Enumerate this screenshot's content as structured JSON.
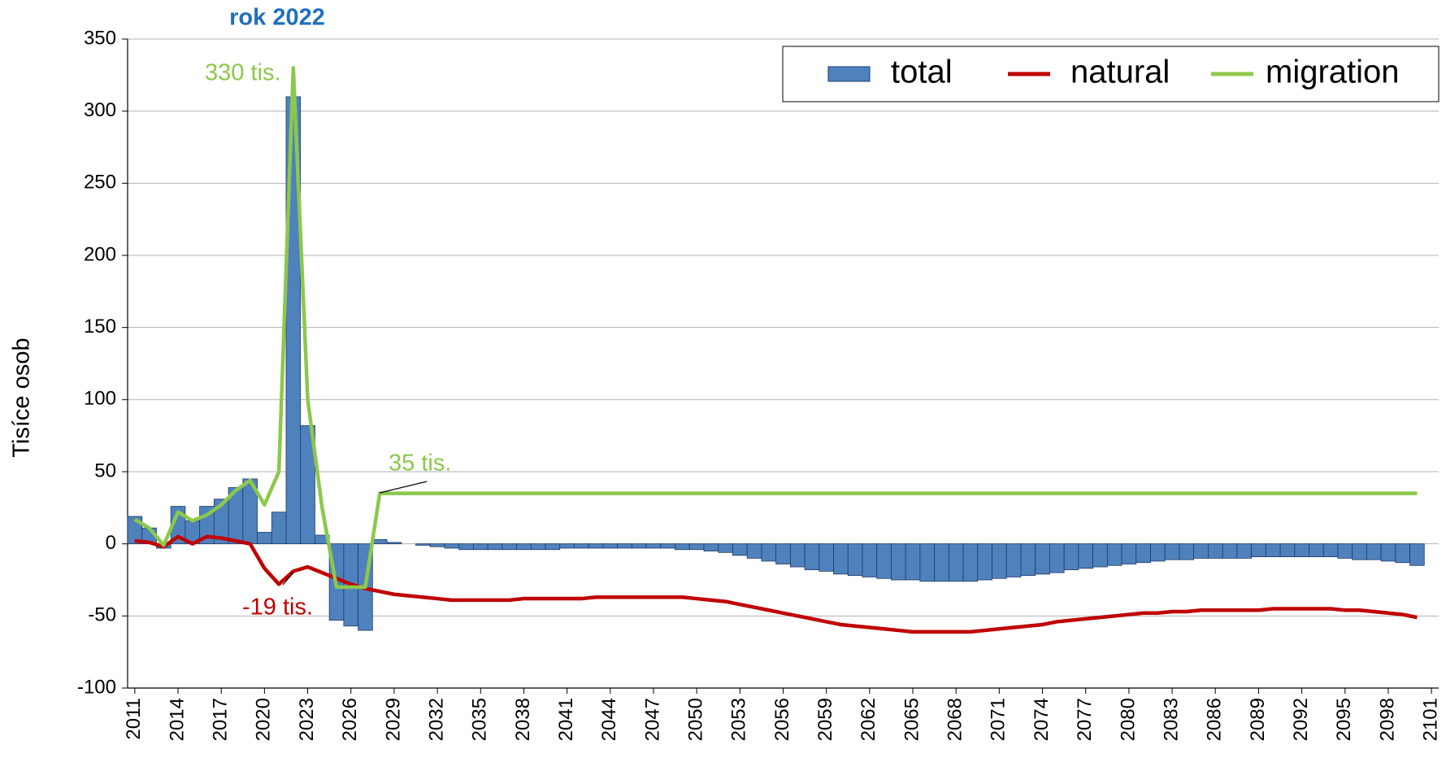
{
  "chart_data": {
    "type": "bar",
    "y_label": "Tisíce osob",
    "annotations": [
      "rok 2022",
      "330 tis.",
      "35 tis.",
      "-19 tis."
    ],
    "x": [
      2011,
      2012,
      2013,
      2014,
      2015,
      2016,
      2017,
      2018,
      2019,
      2020,
      2021,
      2022,
      2023,
      2024,
      2025,
      2026,
      2027,
      2028,
      2029,
      2030,
      2031,
      2032,
      2033,
      2034,
      2035,
      2036,
      2037,
      2038,
      2039,
      2040,
      2041,
      2042,
      2043,
      2044,
      2045,
      2046,
      2047,
      2048,
      2049,
      2050,
      2051,
      2052,
      2053,
      2054,
      2055,
      2056,
      2057,
      2058,
      2059,
      2060,
      2061,
      2062,
      2063,
      2064,
      2065,
      2066,
      2067,
      2068,
      2069,
      2070,
      2071,
      2072,
      2073,
      2074,
      2075,
      2076,
      2077,
      2078,
      2079,
      2080,
      2081,
      2082,
      2083,
      2084,
      2085,
      2086,
      2087,
      2088,
      2089,
      2090,
      2091,
      2092,
      2093,
      2094,
      2095,
      2096,
      2097,
      2098,
      2099,
      2100
    ],
    "series": [
      {
        "name": "total",
        "type": "bar",
        "color": "#4f81bd",
        "values": [
          19,
          11,
          -3,
          26,
          16,
          26,
          31,
          39,
          45,
          8,
          22,
          310,
          82,
          6,
          -53,
          -57,
          -60,
          3,
          1,
          0,
          -1,
          -2,
          -3,
          -4,
          -4,
          -4,
          -4,
          -4,
          -4,
          -4,
          -3,
          -3,
          -3,
          -3,
          -3,
          -3,
          -3,
          -3,
          -4,
          -4,
          -5,
          -6,
          -8,
          -10,
          -12,
          -14,
          -16,
          -18,
          -19,
          -21,
          -22,
          -23,
          -24,
          -25,
          -25,
          -26,
          -26,
          -26,
          -26,
          -25,
          -24,
          -23,
          -22,
          -21,
          -20,
          -18,
          -17,
          -16,
          -15,
          -14,
          -13,
          -12,
          -11,
          -11,
          -10,
          -10,
          -10,
          -10,
          -9,
          -9,
          -9,
          -9,
          -9,
          -9,
          -10,
          -11,
          -11,
          -12,
          -13,
          -15
        ]
      },
      {
        "name": "natural",
        "type": "line",
        "color": "#c00000",
        "values": [
          2,
          1,
          -2,
          5,
          0,
          5,
          4,
          2,
          0,
          -17,
          -28,
          -19,
          -16,
          -20,
          -24,
          -28,
          -31,
          -33,
          -35,
          -36,
          -37,
          -38,
          -39,
          -39,
          -39,
          -39,
          -39,
          -38,
          -38,
          -38,
          -38,
          -38,
          -37,
          -37,
          -37,
          -37,
          -37,
          -37,
          -37,
          -38,
          -39,
          -40,
          -42,
          -44,
          -46,
          -48,
          -50,
          -52,
          -54,
          -56,
          -57,
          -58,
          -59,
          -60,
          -61,
          -61,
          -61,
          -61,
          -61,
          -60,
          -59,
          -58,
          -57,
          -56,
          -54,
          -53,
          -52,
          -51,
          -50,
          -49,
          -48,
          -48,
          -47,
          -47,
          -46,
          -46,
          -46,
          -46,
          -46,
          -45,
          -45,
          -45,
          -45,
          -45,
          -46,
          -46,
          -47,
          -48,
          -49,
          -51
        ]
      },
      {
        "name": "migration",
        "type": "line",
        "color": "#8cc84b",
        "values": [
          17,
          11,
          -1,
          22,
          16,
          20,
          27,
          37,
          44,
          27,
          50,
          330,
          100,
          25,
          -30,
          -30,
          -30,
          35,
          35,
          35,
          35,
          35,
          35,
          35,
          35,
          35,
          35,
          35,
          35,
          35,
          35,
          35,
          35,
          35,
          35,
          35,
          35,
          35,
          35,
          35,
          35,
          35,
          35,
          35,
          35,
          35,
          35,
          35,
          35,
          35,
          35,
          35,
          35,
          35,
          35,
          35,
          35,
          35,
          35,
          35,
          35,
          35,
          35,
          35,
          35,
          35,
          35,
          35,
          35,
          35,
          35,
          35,
          35,
          35,
          35,
          35,
          35,
          35,
          35,
          35,
          35,
          35,
          35,
          35,
          35,
          35,
          35,
          35,
          35,
          35
        ]
      }
    ],
    "xlim": [
      2010.5,
      2101.5
    ],
    "xticks": [
      2011,
      2014,
      2017,
      2020,
      2023,
      2026,
      2029,
      2032,
      2035,
      2038,
      2041,
      2044,
      2047,
      2050,
      2053,
      2056,
      2059,
      2062,
      2065,
      2068,
      2071,
      2074,
      2077,
      2080,
      2083,
      2086,
      2089,
      2092,
      2095,
      2098,
      2101
    ],
    "ylim": [
      -100,
      350
    ],
    "yticks": [
      -100,
      -50,
      0,
      50,
      100,
      150,
      200,
      250,
      300,
      350
    ],
    "grid": true,
    "legend": "top-right"
  }
}
